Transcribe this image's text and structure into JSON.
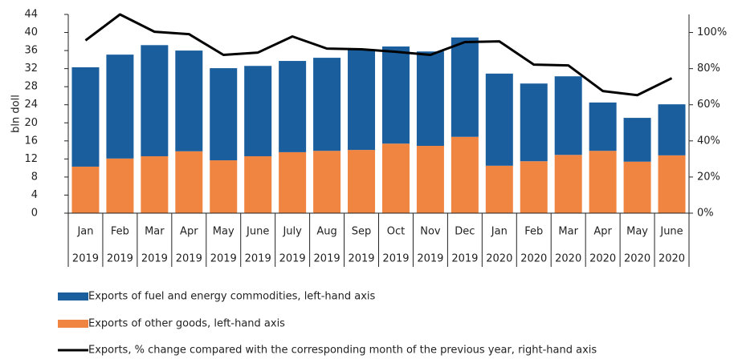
{
  "chart_data": {
    "type": "bar",
    "y_label": "bln doll",
    "categories": [
      "Jan",
      "Feb",
      "Mar",
      "Apr",
      "May",
      "June",
      "July",
      "Aug",
      "Sep",
      "Oct",
      "Nov",
      "Dec",
      "Jan",
      "Feb",
      "Mar",
      "Apr",
      "May",
      "June"
    ],
    "category_groups": [
      "2019",
      "2019",
      "2019",
      "2019",
      "2019",
      "2019",
      "2019",
      "2019",
      "2019",
      "2019",
      "2019",
      "2019",
      "2020",
      "2020",
      "2020",
      "2020",
      "2020",
      "2020"
    ],
    "series": [
      {
        "name": "Exports of fuel and energy commodities, left-hand axis",
        "color": "#1a5e9e",
        "type": "bar",
        "values": [
          22.0,
          23.0,
          24.6,
          22.3,
          20.4,
          20.0,
          20.2,
          20.6,
          22.2,
          21.5,
          20.9,
          22.0,
          20.4,
          17.2,
          17.4,
          10.7,
          9.7,
          11.3
        ]
      },
      {
        "name": "Exports of other goods, left-hand axis",
        "color": "#f08542",
        "type": "bar",
        "values": [
          10.3,
          12.1,
          12.6,
          13.7,
          11.7,
          12.6,
          13.5,
          13.8,
          14.0,
          15.4,
          14.9,
          16.9,
          10.5,
          11.5,
          12.9,
          13.8,
          11.4,
          12.8
        ]
      },
      {
        "name": "Exports, % change compared with the corresponding month of the previous year, right-hand axis",
        "color": "#000000",
        "type": "line",
        "axis": "y2",
        "values": [
          95.6,
          110,
          100.4,
          99.1,
          87.6,
          88.9,
          97.8,
          91.1,
          90.7,
          89.3,
          87.6,
          94.7,
          95.1,
          82.2,
          81.8,
          67.6,
          65.3,
          74.7
        ]
      }
    ],
    "stacked": true,
    "ylim": [
      0,
      44
    ],
    "yticks": [
      0,
      4,
      8,
      12,
      16,
      20,
      24,
      28,
      32,
      36,
      40,
      44
    ],
    "y2lim": [
      0,
      110
    ],
    "y2ticks": [
      {
        "value": 0,
        "label": "0%"
      },
      {
        "value": 20,
        "label": "20%"
      },
      {
        "value": 40,
        "label": "40%"
      },
      {
        "value": 60,
        "label": "60%"
      },
      {
        "value": 80,
        "label": "80%"
      },
      {
        "value": 100,
        "label": "100%"
      }
    ]
  }
}
